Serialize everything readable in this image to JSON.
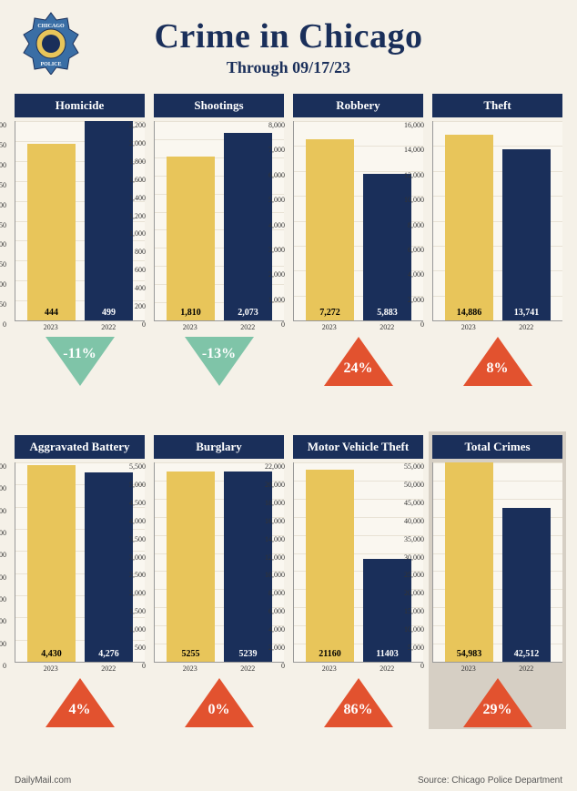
{
  "title": "Crime in Chicago",
  "subtitle": "Through 09/17/23",
  "colors": {
    "panel_header_bg": "#1a2f5a",
    "bar_2023": "#e8c55a",
    "bar_2022": "#1a2f5a",
    "up_triangle": "#e2522f",
    "down_triangle": "#7fc4a8",
    "page_bg": "#f5f1e8",
    "total_bg": "#d6cfc4"
  },
  "x_categories": [
    "2023",
    "2022"
  ],
  "panels": [
    {
      "title": "Homicide",
      "ymax": 500,
      "ytick_step": 50,
      "bars": [
        {
          "label": "444",
          "value": 444
        },
        {
          "label": "499",
          "value": 499
        }
      ],
      "change": {
        "dir": "down",
        "text": "-11%"
      }
    },
    {
      "title": "Shootings",
      "ymax": 2200,
      "ytick_step": 200,
      "bars": [
        {
          "label": "1,810",
          "value": 1810
        },
        {
          "label": "2,073",
          "value": 2073
        }
      ],
      "change": {
        "dir": "down",
        "text": "-13%"
      }
    },
    {
      "title": "Robbery",
      "ymax": 8000,
      "ytick_step": 1000,
      "bars": [
        {
          "label": "7,272",
          "value": 7272
        },
        {
          "label": "5,883",
          "value": 5883
        }
      ],
      "change": {
        "dir": "up",
        "text": "24%"
      }
    },
    {
      "title": "Theft",
      "ymax": 16000,
      "ytick_step": 2000,
      "bars": [
        {
          "label": "14,886",
          "value": 14886
        },
        {
          "label": "13,741",
          "value": 13741
        }
      ],
      "change": {
        "dir": "up",
        "text": "8%"
      }
    },
    {
      "title": "Aggravated Battery",
      "ymax": 4500,
      "ytick_step": 500,
      "bars": [
        {
          "label": "4,430",
          "value": 4430
        },
        {
          "label": "4,276",
          "value": 4276
        }
      ],
      "change": {
        "dir": "up",
        "text": "4%"
      }
    },
    {
      "title": "Burglary",
      "ymax": 5500,
      "ytick_step": 500,
      "bars": [
        {
          "label": "5255",
          "value": 5255
        },
        {
          "label": "5239",
          "value": 5239
        }
      ],
      "change": {
        "dir": "up",
        "text": "0%"
      }
    },
    {
      "title": "Motor Vehicle Theft",
      "ymax": 22000,
      "ytick_step": 2000,
      "bars": [
        {
          "label": "21160",
          "value": 21160
        },
        {
          "label": "11403",
          "value": 11403
        }
      ],
      "change": {
        "dir": "up",
        "text": "86%"
      }
    },
    {
      "title": "Total Crimes",
      "ymax": 55000,
      "ytick_step": 5000,
      "bars": [
        {
          "label": "54,983",
          "value": 54983
        },
        {
          "label": "42,512",
          "value": 42512
        }
      ],
      "change": {
        "dir": "up",
        "text": "29%"
      },
      "highlight": true
    }
  ],
  "footer_left": "DailyMail.com",
  "footer_right": "Source: Chicago Police Department"
}
